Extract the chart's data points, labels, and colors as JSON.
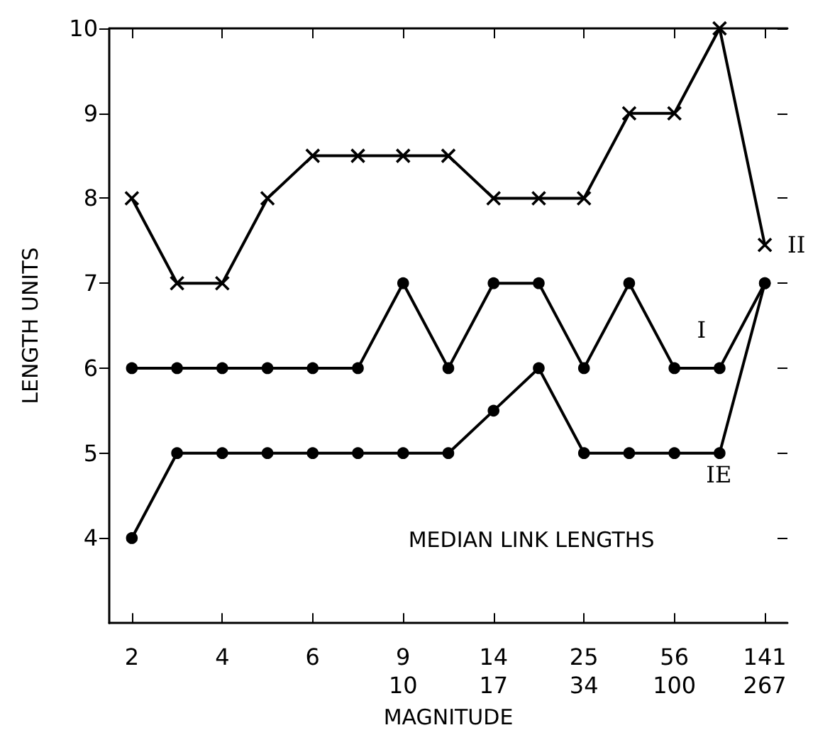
{
  "chart_data": {
    "type": "line",
    "xlabel": "MAGNITUDE",
    "ylabel": "LENGTH UNITS",
    "categories": [
      "2",
      null,
      "4",
      null,
      "6",
      null,
      "9\n10",
      null,
      "14\n17",
      null,
      "25\n34",
      null,
      "56\n100",
      null,
      "141\n267"
    ],
    "series": [
      {
        "name": "II",
        "color": "#000000",
        "marker": "cross",
        "values": [
          8,
          7,
          7,
          8,
          8.5,
          8.5,
          8.5,
          8.5,
          8,
          8,
          8,
          9,
          9,
          10,
          7.45
        ]
      },
      {
        "name": "I",
        "color": "#000000",
        "marker": "circle",
        "values": [
          6,
          6,
          6,
          6,
          6,
          6,
          7,
          6,
          7,
          7,
          6,
          7,
          6,
          6,
          7
        ]
      },
      {
        "name": "IE",
        "color": "#000000",
        "marker": "circle",
        "values": [
          4,
          5,
          5,
          5,
          5,
          5,
          5,
          5,
          5.5,
          6,
          5,
          5,
          5,
          5,
          7
        ]
      }
    ],
    "annotations": [
      "MEDIAN LINK LENGTHS"
    ],
    "ylim": [
      3,
      10
    ],
    "yticks": [
      4,
      5,
      6,
      7,
      8,
      9,
      10
    ],
    "grid": false,
    "legend": false,
    "line_style": "solid"
  }
}
